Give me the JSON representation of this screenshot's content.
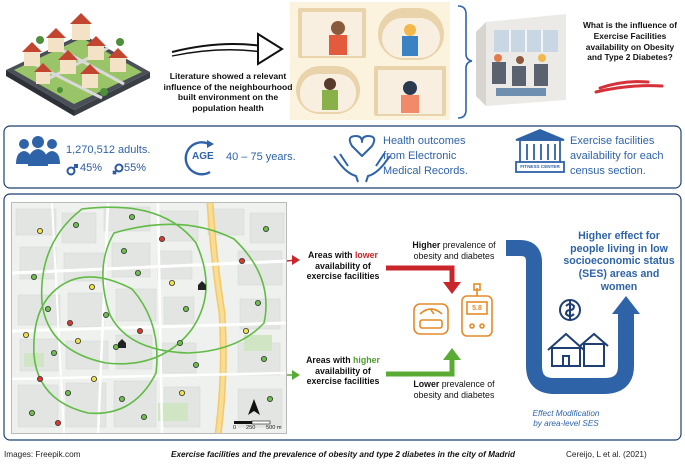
{
  "top": {
    "literature_text": "Literature showed a relevant influence of the neighbourhood built environment on the population health",
    "question_text": "What is the influence of Exercise Facilities availability on Obesity and Type 2 Diabetes?"
  },
  "stats": {
    "adults": "1,270,512 adults.",
    "male_pct": "45%",
    "female_pct": "55%",
    "age_badge": "AGE",
    "age_range": "40 – 75 years.",
    "health_line1": "Health outcomes",
    "health_line2": "from Electronic",
    "health_line3": "Medical Records.",
    "fitness_badge": "FITNESS CENTER",
    "facility_line1": "Exercise facilities",
    "facility_line2": "availability for each",
    "facility_line3": "census section."
  },
  "results": {
    "lower_pre": "Areas with ",
    "lower_hl": "lower",
    "lower_post1": "availability of",
    "lower_post2": "exercise facilities",
    "higher_pre": "Areas with ",
    "higher_hl": "higher",
    "higher_post1": "availability of",
    "higher_post2": "exercise facilities",
    "higher_prev_bold": "Higher",
    "higher_prev_rest": " prevalence of",
    "higher_prev_line2": "obesity and diabetes",
    "lower_prev_bold": "Lower",
    "lower_prev_rest": " prevalence of",
    "lower_prev_line2": "obesity and diabetes",
    "glucometer_value": "5.8",
    "effect_text": "Higher effect for people living in low socioeconomic status (SES) areas and women",
    "effect_mod_line1": "Effect Modification",
    "effect_mod_line2": "by area-level SES"
  },
  "map": {
    "scale_0": "0",
    "scale_250": "250",
    "scale_500": "500 m"
  },
  "footer": {
    "images_credit": "Images: Freepik.com",
    "title": "Exercise facilities and the prevalence of obesity and type 2 diabetes in the city of Madrid",
    "citation": "Cereijo, L et al. (2021)"
  },
  "colors": {
    "blue": "#2f63a8",
    "red": "#c8262a",
    "green": "#5aab33",
    "border": "#1f3f73"
  }
}
